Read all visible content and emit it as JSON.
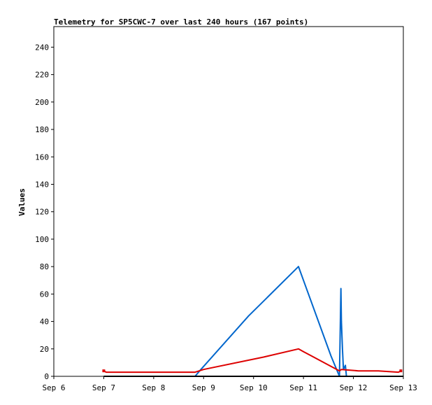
{
  "chart_data": {
    "type": "line",
    "title": "Telemetry for SP5CWC-7 over last 240 hours (167 points)",
    "xlabel": "",
    "ylabel": "Values",
    "x_ticks": [
      "Sep 6",
      "Sep 7",
      "Sep 8",
      "Sep 9",
      "Sep 10",
      "Sep 11",
      "Sep 12",
      "Sep 13"
    ],
    "x_range_days": [
      6,
      13
    ],
    "ylim": [
      0,
      255
    ],
    "y_ticks": [
      0,
      20,
      40,
      60,
      80,
      100,
      120,
      140,
      160,
      180,
      200,
      220,
      240
    ],
    "grid": false,
    "series": [
      {
        "color": "#0066cc",
        "points": [
          [
            8.83,
            0
          ],
          [
            8.92,
            4
          ],
          [
            9.9,
            44
          ],
          [
            10.9,
            80
          ],
          [
            11.0,
            70
          ],
          [
            11.55,
            15
          ],
          [
            11.72,
            0
          ],
          [
            11.75,
            64
          ],
          [
            11.76,
            40
          ],
          [
            11.78,
            20
          ],
          [
            11.8,
            5
          ],
          [
            11.84,
            8
          ],
          [
            11.86,
            0
          ]
        ]
      },
      {
        "color": "#dd0000",
        "points": [
          [
            7.0,
            4
          ],
          [
            7.05,
            3
          ],
          [
            8.83,
            3
          ],
          [
            9.0,
            5
          ],
          [
            10.2,
            14
          ],
          [
            10.9,
            20
          ],
          [
            11.0,
            18
          ],
          [
            11.72,
            4
          ],
          [
            11.76,
            5
          ],
          [
            12.1,
            4
          ],
          [
            12.5,
            4
          ],
          [
            12.9,
            3
          ],
          [
            12.95,
            4
          ]
        ]
      },
      {
        "color": "#000000",
        "points": [
          [
            7.0,
            0
          ],
          [
            13.0,
            0
          ]
        ]
      }
    ]
  }
}
